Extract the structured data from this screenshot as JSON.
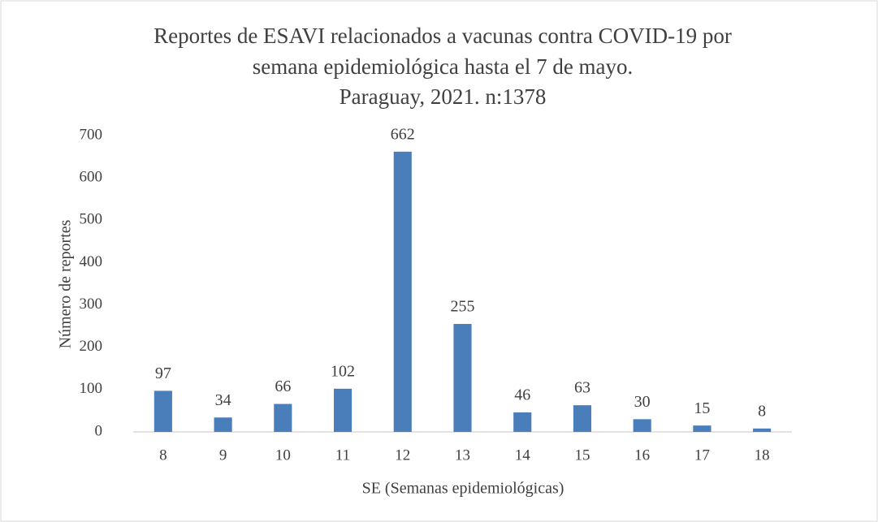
{
  "chart_data": {
    "type": "bar",
    "title": [
      "Reportes de ESAVI relacionados a vacunas contra COVID-19 por",
      "semana epidemiológica hasta el 7 de mayo.",
      "Paraguay, 2021. n:1378"
    ],
    "x_label": "SE (Semanas epidemiológicas)",
    "y_label": "Número de reportes",
    "categories": [
      "8",
      "9",
      "10",
      "11",
      "12",
      "13",
      "14",
      "15",
      "16",
      "17",
      "18"
    ],
    "values": [
      97,
      34,
      66,
      102,
      662,
      255,
      46,
      63,
      30,
      15,
      8
    ],
    "color": "#4a7ebb",
    "ylim": [
      0,
      700
    ],
    "yticks": [
      0,
      100,
      200,
      300,
      400,
      500,
      600,
      700
    ],
    "grid": false
  }
}
